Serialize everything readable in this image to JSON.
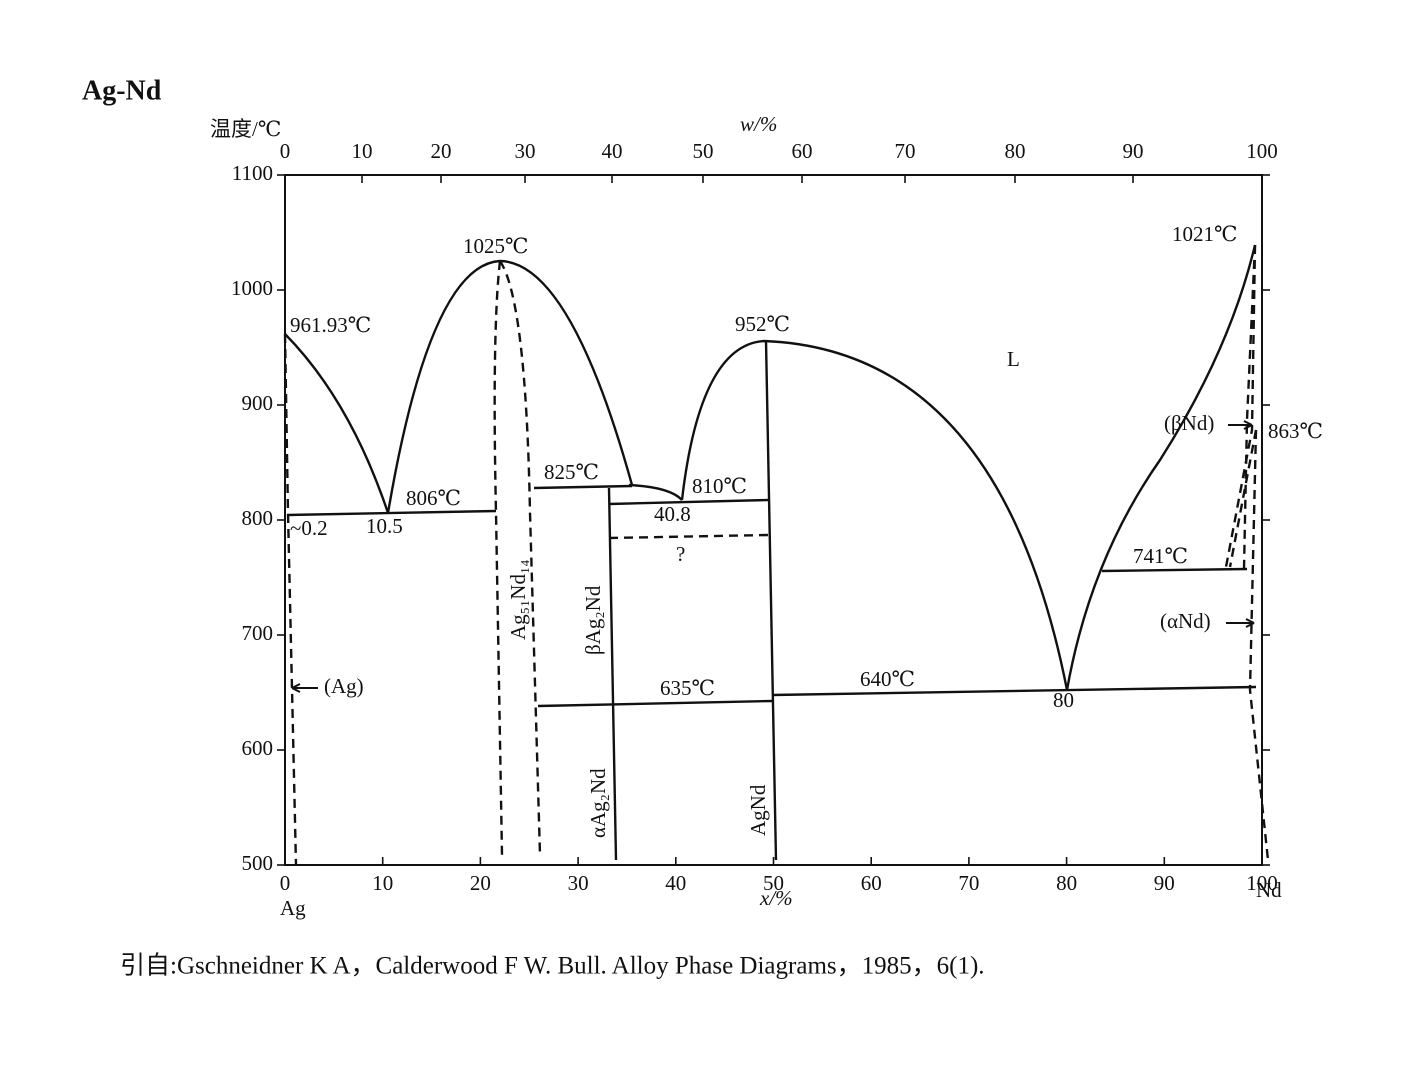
{
  "title": "Ag-Nd",
  "left_axis": {
    "label": "温度/℃",
    "ticks": [
      500,
      600,
      700,
      800,
      900,
      1000,
      1100
    ]
  },
  "top_axis": {
    "label": "w/%",
    "ticks": [
      0,
      10,
      20,
      30,
      40,
      50,
      60,
      70,
      80,
      90,
      100
    ]
  },
  "bottom_axis": {
    "label": "x/%",
    "ticks": [
      0,
      10,
      20,
      30,
      40,
      50,
      60,
      70,
      80,
      90,
      100
    ],
    "left_element": "Ag",
    "right_element": "Nd"
  },
  "annotations": {
    "ag_melt": "961.93℃",
    "congruent_1": "1025℃",
    "congruent_2": "952℃",
    "nd_melt": "1021℃",
    "nd_transition": "863℃",
    "eutectic_1": "806℃",
    "peritectic_1": "825℃",
    "eutectic_2": "810℃",
    "eutectoid_nd": "741℃",
    "transition_1": "635℃",
    "transition_2": "640℃",
    "solubility": "~0.2",
    "eutectic_1_comp": "10.5",
    "eutectic_2_comp": "40.8",
    "question": "?",
    "eutectic_3_comp": "80",
    "liquid": "L",
    "ag_phase": "(Ag)",
    "beta_nd": "(βNd)",
    "alpha_nd": "(αNd)",
    "phase_ag51nd14": "Ag₅₁Nd₁₄",
    "phase_beta_ag2nd": "βAg₂Nd",
    "phase_alpha_ag2nd": "αAg₂Nd",
    "phase_agnd": "AgNd"
  },
  "citation": "引自:Gschneidner K A，Calderwood F W. Bull. Alloy Phase Diagrams，1985，6(1)."
}
